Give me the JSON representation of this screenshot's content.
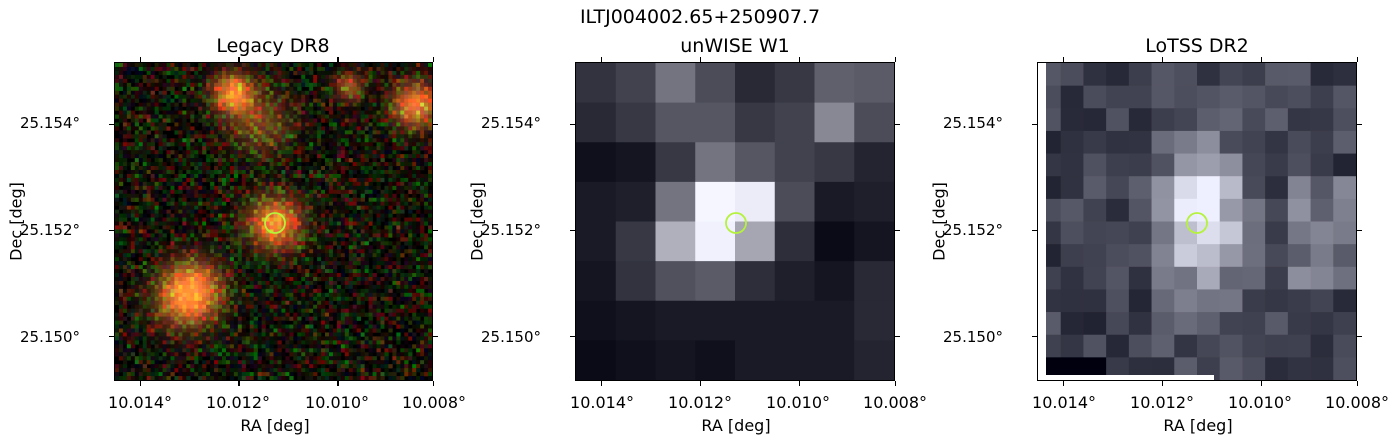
{
  "suptitle": "ILTJ004002.65+250907.7",
  "panels": [
    {
      "title": "Legacy DR8",
      "xlabel": "RA [deg]",
      "ylabel": "Dec [deg]",
      "xticks": [
        "10.014°",
        "10.012°",
        "10.010°",
        "10.008°"
      ],
      "yticks": [
        "25.154°",
        "25.152°",
        "25.150°"
      ],
      "image": "optical color cutout with orange sources",
      "marker_color": "#b5f23c"
    },
    {
      "title": "unWISE W1",
      "xlabel": "RA [deg]",
      "ylabel": "Dec [deg]",
      "xticks": [
        "10.014°",
        "10.012°",
        "10.010°",
        "10.008°"
      ],
      "yticks": [
        "25.154°",
        "25.152°",
        "25.150°"
      ],
      "image": "pixelated grayscale infrared cutout",
      "marker_color": "#b5f23c"
    },
    {
      "title": "LoTSS DR2",
      "xlabel": "RA [deg]",
      "ylabel": "Dec [deg]",
      "xticks": [
        "10.014°",
        "10.012°",
        "10.010°",
        "10.008°"
      ],
      "yticks": [
        "25.154°",
        "25.152°",
        "25.150°"
      ],
      "image": "pixelated grayscale radio cutout",
      "marker_color": "#b5f23c"
    }
  ]
}
